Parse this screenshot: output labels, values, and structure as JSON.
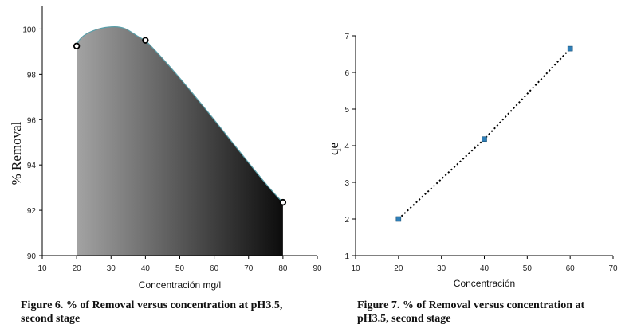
{
  "chart_data": [
    {
      "type": "area",
      "title": "",
      "xlabel": "Concentración mg/l",
      "ylabel": "% Removal",
      "xlim": [
        10,
        90
      ],
      "ylim": [
        90,
        101
      ],
      "xticks": [
        10,
        20,
        30,
        40,
        50,
        60,
        70,
        80,
        90
      ],
      "yticks": [
        90,
        92,
        94,
        96,
        98,
        100
      ],
      "series": [
        {
          "name": "% Removal",
          "x": [
            20,
            40,
            80
          ],
          "y": [
            99.25,
            99.5,
            92.35
          ]
        }
      ],
      "curve_peak": {
        "x": 31,
        "y": 100.1
      },
      "fill": "gradient light gray to black",
      "colors": {
        "marker": "#000000",
        "curve": "#5a9ea8",
        "fill_start": "#a3a3a3",
        "fill_end": "#0c0c0c"
      },
      "caption": "Figure 6. % of Removal versus concentration at pH3.5,\nsecond stage"
    },
    {
      "type": "line",
      "title": "",
      "xlabel": "Concentración",
      "ylabel": "qe",
      "xlim": [
        10,
        70
      ],
      "ylim": [
        1,
        7
      ],
      "xticks": [
        10,
        20,
        30,
        40,
        50,
        60,
        70
      ],
      "yticks": [
        1,
        2,
        3,
        4,
        5,
        6,
        7
      ],
      "series": [
        {
          "name": "qe",
          "x": [
            20,
            40,
            60
          ],
          "y": [
            2.0,
            4.18,
            6.65
          ]
        }
      ],
      "line_style": "dotted",
      "colors": {
        "marker": "#2f7fb8",
        "line": "#000000"
      },
      "caption": "Figure 7. % of Removal versus concentration at\npH3.5, second stage"
    }
  ]
}
